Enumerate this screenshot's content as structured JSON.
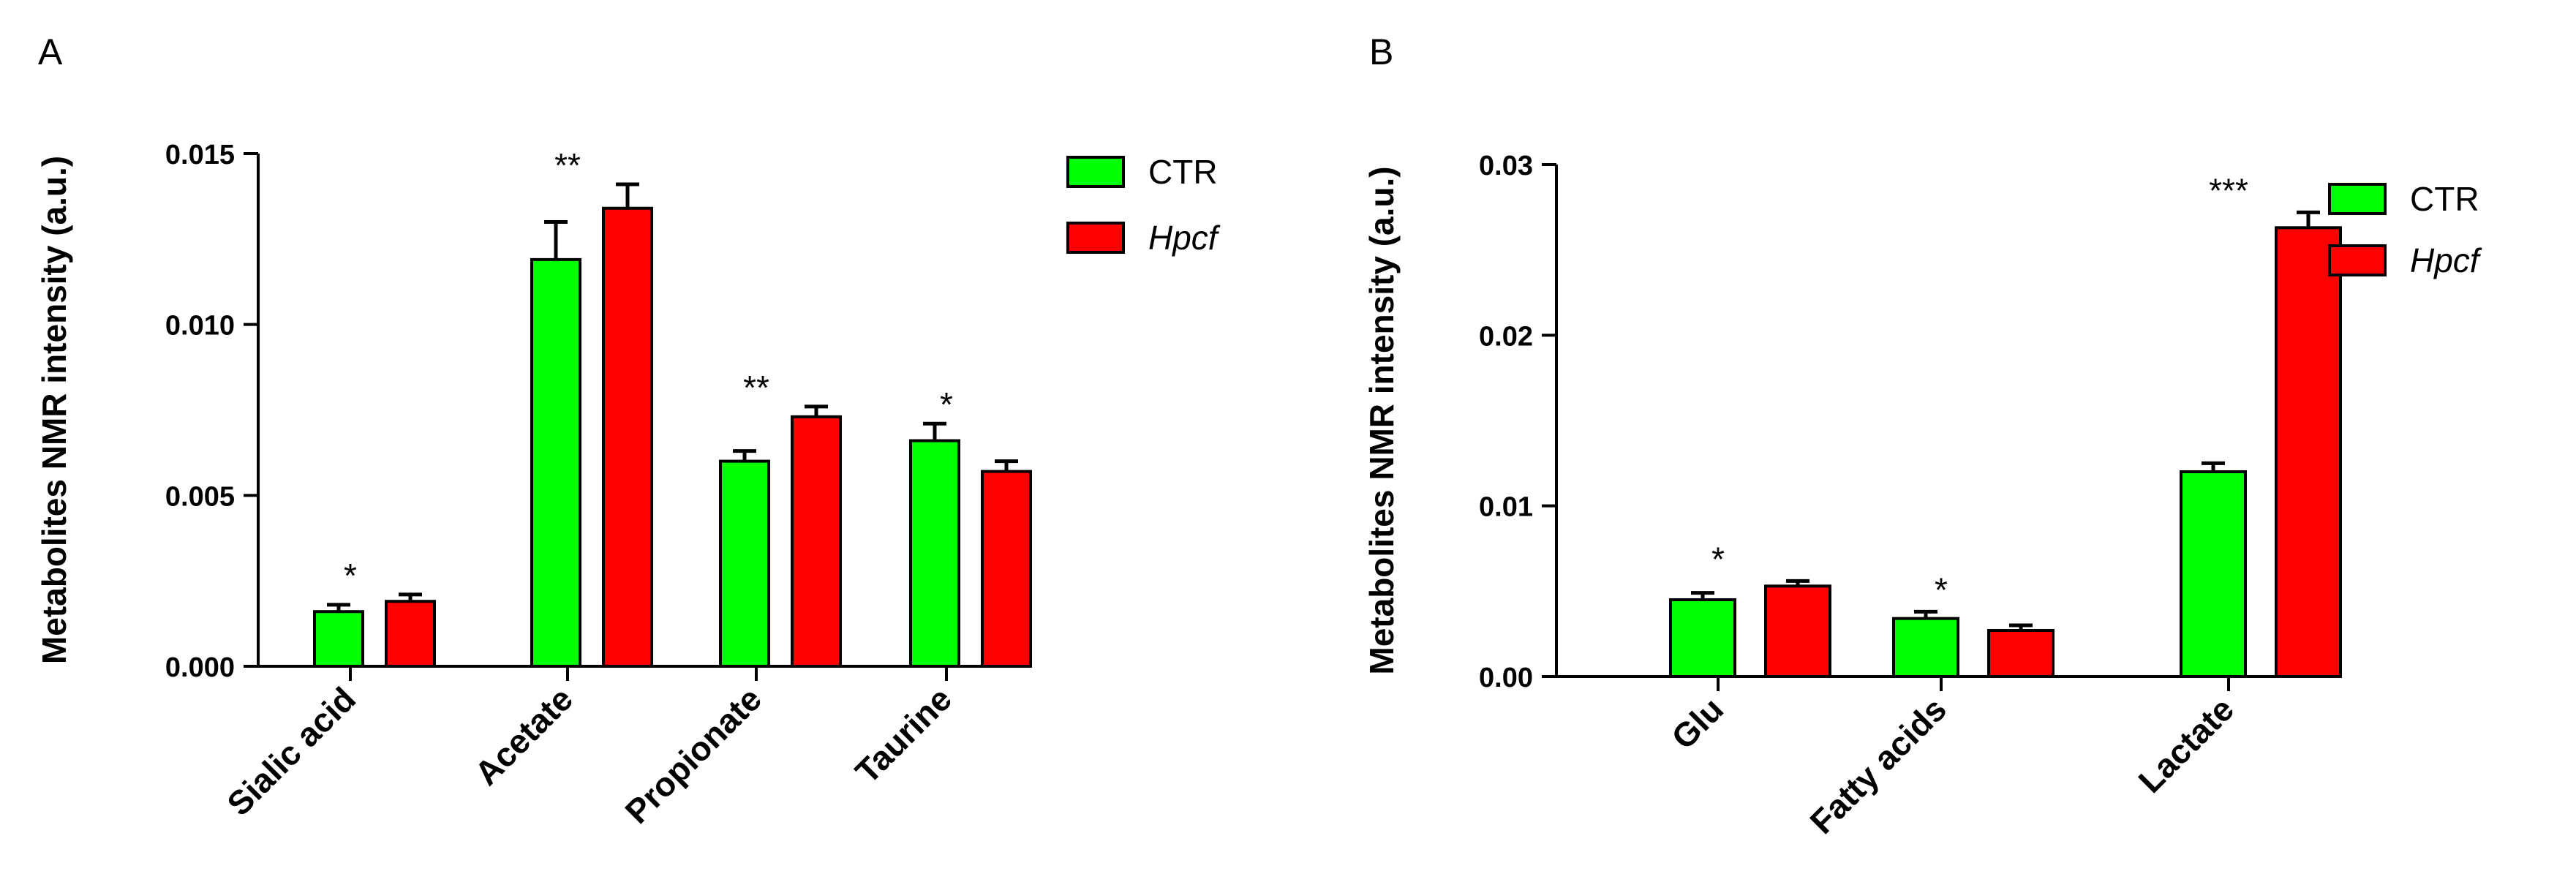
{
  "chart_data": [
    {
      "panel": "A",
      "type": "bar",
      "ylabel": "Metabolites NMR intensity (a.u.)",
      "ylim": [
        0,
        0.015
      ],
      "yticks": [
        "0.000",
        "0.005",
        "0.010",
        "0.015"
      ],
      "categories": [
        "Sialic acid",
        "Acetate",
        "Propionate",
        "Taurine"
      ],
      "series": [
        {
          "name": "CTR",
          "italic": false,
          "color": "#00ff00",
          "values": [
            0.0016,
            0.0119,
            0.006,
            0.0066
          ],
          "errors": [
            0.0002,
            0.0011,
            0.0003,
            0.0005
          ]
        },
        {
          "name": "Hpcf",
          "italic": true,
          "color": "#ff0000",
          "values": [
            0.0019,
            0.0134,
            0.0073,
            0.0057
          ],
          "errors": [
            0.0002,
            0.0007,
            0.0003,
            0.0003
          ]
        }
      ],
      "significance": [
        "*",
        "**",
        "**",
        "*"
      ],
      "legend": "right"
    },
    {
      "panel": "B",
      "type": "bar",
      "ylabel": "Metabolites NMR intensity (a.u.)",
      "ylim": [
        0,
        0.03
      ],
      "yticks": [
        "0.00",
        "0.01",
        "0.02",
        "0.03"
      ],
      "categories": [
        "Glu",
        "Fatty acids",
        "Lactate"
      ],
      "series": [
        {
          "name": "CTR",
          "italic": false,
          "color": "#00ff00",
          "values": [
            0.0045,
            0.0034,
            0.012
          ],
          "errors": [
            0.0004,
            0.0004,
            0.0005
          ]
        },
        {
          "name": "Hpcf",
          "italic": true,
          "color": "#ff0000",
          "values": [
            0.0053,
            0.0027,
            0.0263
          ],
          "errors": [
            0.0003,
            0.0003,
            0.0009
          ]
        }
      ],
      "significance": [
        "*",
        "*",
        "***"
      ],
      "legend": "right"
    }
  ]
}
